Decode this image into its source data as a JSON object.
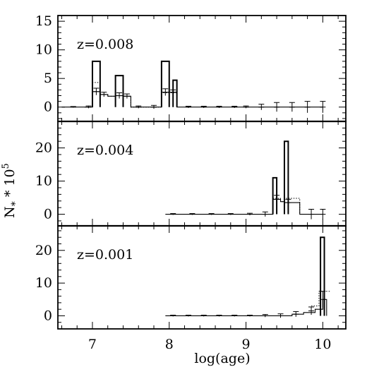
{
  "chart_data": {
    "type": "bar",
    "xlabel": "log(age)",
    "ylabel": "N* * 10^5",
    "ylabel_parts": {
      "main": "N",
      "sub": "*",
      "mid": " * 10",
      "sup": "5"
    },
    "xlim": [
      6.55,
      10.3
    ],
    "x_ticks": [
      7,
      8,
      9,
      10
    ],
    "panels": [
      {
        "label": "z=0.008",
        "ylim": [
          -2.5,
          16
        ],
        "y_ticks": [
          0,
          5,
          10,
          15
        ],
        "bars": [
          {
            "x0": 7.0,
            "x1": 7.1,
            "value": 8.0
          },
          {
            "x0": 7.3,
            "x1": 7.4,
            "value": 5.5
          },
          {
            "x0": 7.9,
            "x1": 8.0,
            "value": 8.0
          },
          {
            "x0": 8.05,
            "x1": 8.1,
            "value": 4.7
          }
        ],
        "model_solid": {
          "x": [
            6.6,
            6.9,
            7.0,
            7.1,
            7.2,
            7.3,
            7.4,
            7.5,
            7.9,
            8.0,
            8.1,
            10.0
          ],
          "y": [
            0,
            0,
            2.7,
            2.2,
            1.9,
            2.0,
            1.9,
            0,
            2.6,
            2.6,
            0,
            0
          ]
        },
        "model_dotted": {
          "x": [
            6.9,
            7.0,
            7.1,
            7.2,
            7.3,
            7.4,
            7.5,
            7.9,
            8.0,
            8.1
          ],
          "y": [
            0,
            4.3,
            2.2,
            1.9,
            2.0,
            1.9,
            0,
            2.5,
            2.5,
            0
          ]
        },
        "errorbars": [
          {
            "x": 6.75,
            "y": 0,
            "err": 0.1
          },
          {
            "x": 6.95,
            "y": 0,
            "err": 0.2
          },
          {
            "x": 7.05,
            "y": 2.7,
            "err": 0.6
          },
          {
            "x": 7.15,
            "y": 2.2,
            "err": 0.4
          },
          {
            "x": 7.35,
            "y": 2.0,
            "err": 0.5
          },
          {
            "x": 7.45,
            "y": 1.9,
            "err": 0.4
          },
          {
            "x": 7.6,
            "y": 0,
            "err": 0.2
          },
          {
            "x": 7.8,
            "y": 0,
            "err": 0.3
          },
          {
            "x": 7.95,
            "y": 2.6,
            "err": 0.6
          },
          {
            "x": 8.05,
            "y": 2.6,
            "err": 0.4
          },
          {
            "x": 8.25,
            "y": 0,
            "err": 0.15
          },
          {
            "x": 8.45,
            "y": 0,
            "err": 0.15
          },
          {
            "x": 8.65,
            "y": 0,
            "err": 0.15
          },
          {
            "x": 8.85,
            "y": 0,
            "err": 0.15
          },
          {
            "x": 9.0,
            "y": 0,
            "err": 0.2
          },
          {
            "x": 9.2,
            "y": 0,
            "err": 0.5
          },
          {
            "x": 9.4,
            "y": 0,
            "err": 0.8
          },
          {
            "x": 9.6,
            "y": 0,
            "err": 0.8
          },
          {
            "x": 9.8,
            "y": 0,
            "err": 1.0
          },
          {
            "x": 10.0,
            "y": 0,
            "err": 1.0
          }
        ]
      },
      {
        "label": "z=0.004",
        "ylim": [
          -3.5,
          28
        ],
        "y_ticks": [
          0,
          10,
          20
        ],
        "bars": [
          {
            "x0": 9.35,
            "x1": 9.4,
            "value": 11.0
          },
          {
            "x0": 9.5,
            "x1": 9.55,
            "value": 22.0
          }
        ],
        "model_solid": {
          "x": [
            7.95,
            9.3,
            9.35,
            9.45,
            9.5,
            9.6,
            9.7,
            10.0
          ],
          "y": [
            0,
            0,
            4.5,
            3.8,
            3.5,
            3.5,
            0,
            0
          ]
        },
        "model_dotted": {
          "x": [
            9.3,
            9.35,
            9.45,
            9.5,
            9.6,
            9.7
          ],
          "y": [
            0,
            4.8,
            3.8,
            4.8,
            4.8,
            0
          ]
        },
        "errorbars": [
          {
            "x": 8.05,
            "y": 0,
            "err": 0.2
          },
          {
            "x": 8.3,
            "y": 0,
            "err": 0.2
          },
          {
            "x": 8.55,
            "y": 0,
            "err": 0.2
          },
          {
            "x": 8.8,
            "y": 0,
            "err": 0.2
          },
          {
            "x": 9.05,
            "y": 0,
            "err": 0.3
          },
          {
            "x": 9.25,
            "y": 0,
            "err": 0.7
          },
          {
            "x": 9.4,
            "y": 4.5,
            "err": 1.2
          },
          {
            "x": 9.55,
            "y": 3.5,
            "err": 1.0
          },
          {
            "x": 9.85,
            "y": 0,
            "err": 1.5
          },
          {
            "x": 10.0,
            "y": 0,
            "err": 1.5
          }
        ]
      },
      {
        "label": "z=0.001",
        "ylim": [
          -4,
          27.5
        ],
        "y_ticks": [
          0,
          10,
          20
        ],
        "bars": [
          {
            "x0": 9.97,
            "x1": 10.02,
            "value": 24.0
          }
        ],
        "model_solid": {
          "x": [
            7.95,
            9.5,
            9.6,
            9.75,
            9.9,
            10.0,
            10.05
          ],
          "y": [
            0,
            0,
            0.5,
            1.0,
            2.0,
            5.0,
            0
          ]
        },
        "model_dotted": {
          "x": [
            9.85,
            9.95,
            10.1
          ],
          "y": [
            3.0,
            7.5,
            7.5
          ]
        },
        "errorbars": [
          {
            "x": 8.05,
            "y": 0,
            "err": 0.2
          },
          {
            "x": 8.25,
            "y": 0,
            "err": 0.2
          },
          {
            "x": 8.45,
            "y": 0,
            "err": 0.2
          },
          {
            "x": 8.65,
            "y": 0,
            "err": 0.2
          },
          {
            "x": 8.85,
            "y": 0,
            "err": 0.2
          },
          {
            "x": 9.05,
            "y": 0,
            "err": 0.2
          },
          {
            "x": 9.25,
            "y": 0,
            "err": 0.4
          },
          {
            "x": 9.45,
            "y": 0,
            "err": 0.6
          },
          {
            "x": 9.65,
            "y": 0.5,
            "err": 0.8
          },
          {
            "x": 9.85,
            "y": 1.5,
            "err": 1.2
          },
          {
            "x": 10.0,
            "y": 5.0,
            "err": 2.5
          }
        ]
      }
    ]
  }
}
